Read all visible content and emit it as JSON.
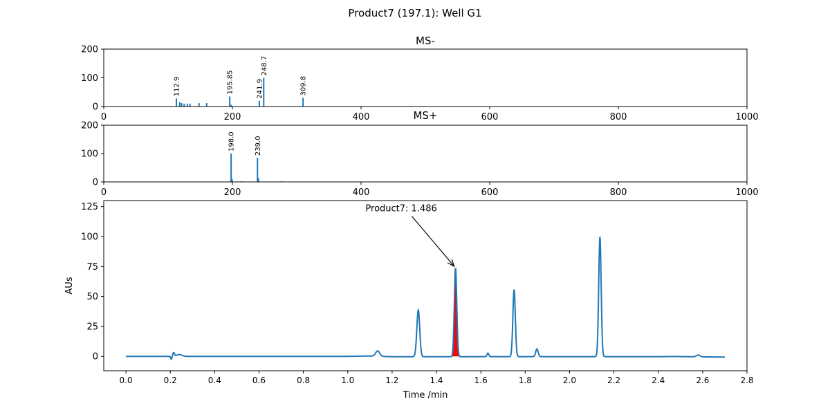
{
  "figure": {
    "suptitle": "Product7 (197.1): Well G1"
  },
  "chart_data": [
    {
      "type": "bar",
      "title": "MS-",
      "xlim": [
        0,
        1000
      ],
      "ylim": [
        0,
        200
      ],
      "xticks": [
        0,
        200,
        400,
        600,
        800,
        1000
      ],
      "yticks": [
        0,
        100,
        200
      ],
      "peaks": [
        {
          "mz": 112.9,
          "intensity": 28,
          "label": "112.9"
        },
        {
          "mz": 118,
          "intensity": 15,
          "label": ""
        },
        {
          "mz": 121,
          "intensity": 12,
          "label": ""
        },
        {
          "mz": 125,
          "intensity": 10,
          "label": ""
        },
        {
          "mz": 130,
          "intensity": 10,
          "label": ""
        },
        {
          "mz": 134,
          "intensity": 10,
          "label": ""
        },
        {
          "mz": 148,
          "intensity": 12,
          "label": ""
        },
        {
          "mz": 160,
          "intensity": 12,
          "label": ""
        },
        {
          "mz": 195.85,
          "intensity": 35,
          "label": "195.85"
        },
        {
          "mz": 198,
          "intensity": 6,
          "label": ""
        },
        {
          "mz": 241.9,
          "intensity": 20,
          "label": "241.9"
        },
        {
          "mz": 248.7,
          "intensity": 100,
          "label": "248.7"
        },
        {
          "mz": 309.8,
          "intensity": 30,
          "label": "309.8"
        }
      ]
    },
    {
      "type": "bar",
      "title": "MS+",
      "xlim": [
        0,
        1000
      ],
      "ylim": [
        0,
        200
      ],
      "xticks": [
        0,
        200,
        400,
        600,
        800,
        1000
      ],
      "yticks": [
        0,
        100,
        200
      ],
      "peaks": [
        {
          "mz": 198.0,
          "intensity": 100,
          "label": "198.0"
        },
        {
          "mz": 199.5,
          "intensity": 10,
          "label": ""
        },
        {
          "mz": 215,
          "intensity": 2,
          "label": ""
        },
        {
          "mz": 239.0,
          "intensity": 85,
          "label": "239.0"
        },
        {
          "mz": 240.5,
          "intensity": 14,
          "label": ""
        },
        {
          "mz": 276,
          "intensity": 2,
          "label": ""
        }
      ]
    },
    {
      "type": "line",
      "title": "",
      "xlabel": "Time /min",
      "ylabel": "AUs",
      "xlim": [
        -0.1,
        2.8
      ],
      "ylim": [
        -12,
        130
      ],
      "xticks": [
        0.0,
        0.2,
        0.4,
        0.6,
        0.8,
        1.0,
        1.2,
        1.4,
        1.6,
        1.8,
        2.0,
        2.2,
        2.4,
        2.6,
        2.8
      ],
      "xtick_labels": [
        "0.0",
        "0.2",
        "0.4",
        "0.6",
        "0.8",
        "1.0",
        "1.2",
        "1.4",
        "1.6",
        "1.8",
        "2.0",
        "2.2",
        "2.4",
        "2.6",
        "2.8"
      ],
      "yticks": [
        0,
        25,
        50,
        75,
        100,
        125
      ],
      "baseline": [
        [
          0.0,
          0.0
        ],
        [
          0.5,
          0.0
        ],
        [
          1.0,
          0.0
        ],
        [
          1.1,
          0.3
        ],
        [
          1.2,
          -0.3
        ],
        [
          2.5,
          -0.2
        ],
        [
          2.7,
          -0.6
        ]
      ],
      "peaks": [
        {
          "center": 0.215,
          "height": 3.0,
          "width": 0.004
        },
        {
          "center": 0.205,
          "height": -2.5,
          "width": 0.003
        },
        {
          "center": 0.24,
          "height": 1.5,
          "width": 0.012
        },
        {
          "center": 1.135,
          "height": 4.5,
          "width": 0.009
        },
        {
          "center": 1.318,
          "height": 39,
          "width": 0.0065
        },
        {
          "center": 1.486,
          "height": 74,
          "width": 0.0055
        },
        {
          "center": 1.632,
          "height": 3,
          "width": 0.004
        },
        {
          "center": 1.75,
          "height": 56,
          "width": 0.0055
        },
        {
          "center": 1.853,
          "height": 6.5,
          "width": 0.0055
        },
        {
          "center": 2.137,
          "height": 100,
          "width": 0.0055
        },
        {
          "center": 2.58,
          "height": 1.5,
          "width": 0.008
        }
      ],
      "highlight_range": [
        1.46,
        1.52
      ],
      "annotation": {
        "text": "Product7: 1.486",
        "target": [
          1.486,
          74
        ],
        "text_anchor": [
          1.08,
          121
        ]
      },
      "colors": {
        "trace": "#1f77b4",
        "highlight": "#ff0000"
      }
    }
  ]
}
